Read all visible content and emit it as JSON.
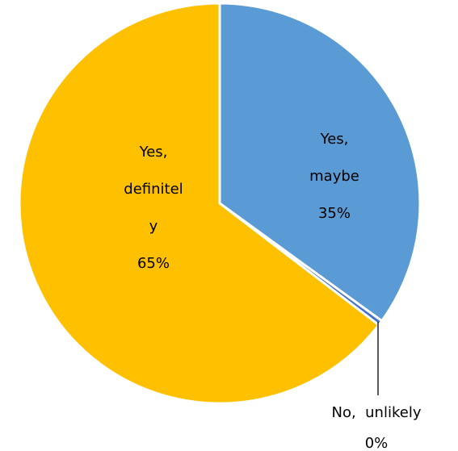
{
  "chart_data": {
    "type": "pie",
    "slices": [
      {
        "label_lines": [
          "Yes,",
          "maybe"
        ],
        "value_label": "35%",
        "value": 35,
        "color": "#5b9bd5"
      },
      {
        "label_lines": [
          "No,  unlikely"
        ],
        "value_label": "0%",
        "value": 0.4,
        "color": "#4472c4"
      },
      {
        "label_lines": [
          "Yes,",
          "definitel",
          "y"
        ],
        "value_label": "65%",
        "value": 64.6,
        "color": "#ffc000"
      }
    ],
    "legend": false
  }
}
